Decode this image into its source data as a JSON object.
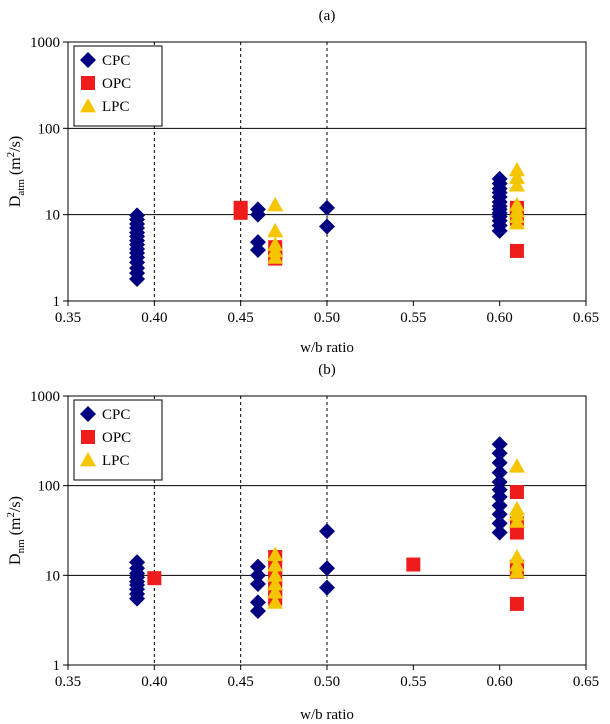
{
  "chart_data": [
    {
      "type": "scatter",
      "panel_label": "(a)",
      "ylabel_main": "D",
      "ylabel_sub": "atm",
      "ylabel_units_pre": " (m",
      "ylabel_units_sup": "2",
      "ylabel_units_post": "/s)",
      "xlabel": "w/b ratio",
      "xlim": [
        0.35,
        0.65
      ],
      "ylim": [
        1,
        1000
      ],
      "yscale": "log",
      "xticks": [
        "0.35",
        "0.40",
        "0.45",
        "0.50",
        "0.55",
        "0.60",
        "0.65"
      ],
      "yticks": [
        "1",
        "10",
        "100",
        "1000"
      ],
      "grid_y": [
        10,
        100
      ],
      "dashed_x": [
        0.4,
        0.45,
        0.5
      ],
      "legend_position": "top-left",
      "series": [
        {
          "name": "CPC",
          "marker": "diamond",
          "color": "#000080",
          "points": [
            [
              0.39,
              1.8
            ],
            [
              0.39,
              2.1
            ],
            [
              0.39,
              2.4
            ],
            [
              0.39,
              2.8
            ],
            [
              0.39,
              3.2
            ],
            [
              0.39,
              3.6
            ],
            [
              0.39,
              4.0
            ],
            [
              0.39,
              4.5
            ],
            [
              0.39,
              5.0
            ],
            [
              0.39,
              5.6
            ],
            [
              0.39,
              6.2
            ],
            [
              0.39,
              7.0
            ],
            [
              0.39,
              7.8
            ],
            [
              0.39,
              8.8
            ],
            [
              0.39,
              9.8
            ],
            [
              0.46,
              3.9
            ],
            [
              0.46,
              4.8
            ],
            [
              0.46,
              10.0
            ],
            [
              0.46,
              11.5
            ],
            [
              0.5,
              7.3
            ],
            [
              0.5,
              12.0
            ],
            [
              0.6,
              6.5
            ],
            [
              0.6,
              7.5
            ],
            [
              0.6,
              8.5
            ],
            [
              0.6,
              9.5
            ],
            [
              0.6,
              10.5
            ],
            [
              0.6,
              11.5
            ],
            [
              0.6,
              12.5
            ],
            [
              0.6,
              14.0
            ],
            [
              0.6,
              16.0
            ],
            [
              0.6,
              18.0
            ],
            [
              0.6,
              20.0
            ],
            [
              0.6,
              23.0
            ],
            [
              0.6,
              26.0
            ]
          ]
        },
        {
          "name": "OPC",
          "marker": "square",
          "color": "#ee1c1c",
          "points": [
            [
              0.45,
              10.5
            ],
            [
              0.45,
              12.0
            ],
            [
              0.47,
              3.1
            ],
            [
              0.47,
              3.6
            ],
            [
              0.47,
              4.2
            ],
            [
              0.61,
              3.8
            ],
            [
              0.61,
              9.0
            ],
            [
              0.61,
              10.0
            ],
            [
              0.61,
              11.0
            ],
            [
              0.61,
              12.0
            ]
          ]
        },
        {
          "name": "LPC",
          "marker": "triangle",
          "color": "#f5c500",
          "points": [
            [
              0.47,
              3.2
            ],
            [
              0.47,
              3.8
            ],
            [
              0.47,
              4.5
            ],
            [
              0.47,
              6.5
            ],
            [
              0.47,
              13.0
            ],
            [
              0.61,
              8.0
            ],
            [
              0.61,
              9.5
            ],
            [
              0.61,
              11.0
            ],
            [
              0.61,
              13.0
            ],
            [
              0.61,
              22.0
            ],
            [
              0.61,
              27.0
            ],
            [
              0.61,
              33.0
            ]
          ]
        }
      ]
    },
    {
      "type": "scatter",
      "panel_label": "(b)",
      "ylabel_main": "D",
      "ylabel_sub": "nm",
      "ylabel_units_pre": " (m",
      "ylabel_units_sup": "2",
      "ylabel_units_post": "/s)",
      "xlabel": "w/b ratio",
      "xlim": [
        0.35,
        0.65
      ],
      "ylim": [
        1,
        1000
      ],
      "yscale": "log",
      "xticks": [
        "0.35",
        "0.40",
        "0.45",
        "0.50",
        "0.55",
        "0.60",
        "0.65"
      ],
      "yticks": [
        "1",
        "10",
        "100",
        "1000"
      ],
      "grid_y": [
        10,
        100
      ],
      "dashed_x": [
        0.4,
        0.45,
        0.5
      ],
      "legend_position": "top-left",
      "series": [
        {
          "name": "CPC",
          "marker": "diamond",
          "color": "#000080",
          "points": [
            [
              0.39,
              5.5
            ],
            [
              0.39,
              6.2
            ],
            [
              0.39,
              7.0
            ],
            [
              0.39,
              7.8
            ],
            [
              0.39,
              8.5
            ],
            [
              0.39,
              9.5
            ],
            [
              0.39,
              10.5
            ],
            [
              0.39,
              12.0
            ],
            [
              0.39,
              14.0
            ],
            [
              0.46,
              4.0
            ],
            [
              0.46,
              5.0
            ],
            [
              0.46,
              8.0
            ],
            [
              0.46,
              10.0
            ],
            [
              0.46,
              12.5
            ],
            [
              0.5,
              7.3
            ],
            [
              0.5,
              12.0
            ],
            [
              0.5,
              31.0
            ],
            [
              0.6,
              30.0
            ],
            [
              0.6,
              38.0
            ],
            [
              0.6,
              48.0
            ],
            [
              0.6,
              60.0
            ],
            [
              0.6,
              75.0
            ],
            [
              0.6,
              90.0
            ],
            [
              0.6,
              110.0
            ],
            [
              0.6,
              140.0
            ],
            [
              0.6,
              180.0
            ],
            [
              0.6,
              230.0
            ],
            [
              0.6,
              290.0
            ]
          ]
        },
        {
          "name": "OPC",
          "marker": "square",
          "color": "#ee1c1c",
          "points": [
            [
              0.4,
              9.3
            ],
            [
              0.47,
              5.5
            ],
            [
              0.47,
              7.0
            ],
            [
              0.47,
              9.0
            ],
            [
              0.47,
              12.0
            ],
            [
              0.47,
              16.0
            ],
            [
              0.55,
              13.2
            ],
            [
              0.61,
              4.8
            ],
            [
              0.61,
              11.0
            ],
            [
              0.61,
              12.5
            ],
            [
              0.61,
              30.0
            ],
            [
              0.61,
              38.0
            ],
            [
              0.61,
              85.0
            ]
          ]
        },
        {
          "name": "LPC",
          "marker": "triangle",
          "color": "#f5c500",
          "points": [
            [
              0.47,
              5.0
            ],
            [
              0.47,
              6.5
            ],
            [
              0.47,
              8.0
            ],
            [
              0.47,
              10.0
            ],
            [
              0.47,
              13.0
            ],
            [
              0.47,
              17.0
            ],
            [
              0.61,
              11.0
            ],
            [
              0.61,
              13.0
            ],
            [
              0.61,
              16.0
            ],
            [
              0.61,
              40.0
            ],
            [
              0.61,
              48.0
            ],
            [
              0.61,
              55.0
            ],
            [
              0.61,
              165.0
            ]
          ]
        }
      ]
    }
  ]
}
